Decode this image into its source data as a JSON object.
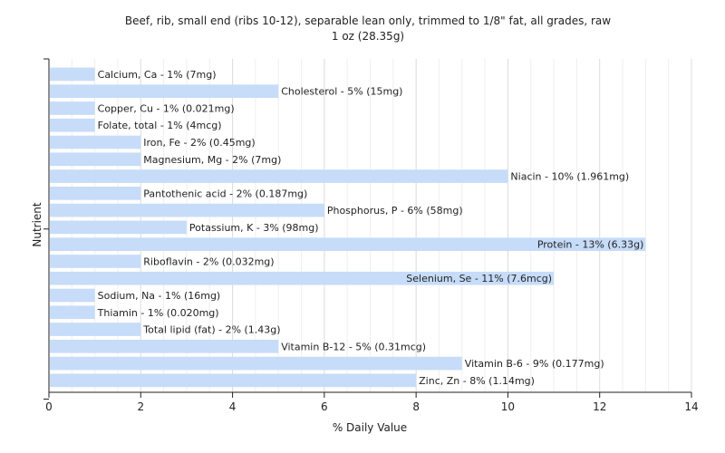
{
  "chart_data": {
    "type": "bar",
    "orientation": "horizontal",
    "title": "Beef, rib, small end (ribs 10-12), separable lean only, trimmed to 1/8\" fat, all grades, raw",
    "subtitle": "1 oz (28.35g)",
    "xlabel": "% Daily Value",
    "ylabel": "Nutrient",
    "xlim": [
      0,
      14
    ],
    "xticks": [
      0,
      2,
      4,
      6,
      8,
      10,
      12,
      14
    ],
    "grid": true,
    "bar_color": "#c6dcf9",
    "categories": [
      "Calcium, Ca",
      "Cholesterol",
      "Copper, Cu",
      "Folate, total",
      "Iron, Fe",
      "Magnesium, Mg",
      "Niacin",
      "Pantothenic acid",
      "Phosphorus, P",
      "Potassium, K",
      "Protein",
      "Riboflavin",
      "Selenium, Se",
      "Sodium, Na",
      "Thiamin",
      "Total lipid (fat)",
      "Vitamin B-12",
      "Vitamin B-6",
      "Zinc, Zn"
    ],
    "values": [
      1,
      5,
      1,
      1,
      2,
      2,
      10,
      2,
      6,
      3,
      13,
      2,
      11,
      1,
      1,
      2,
      5,
      9,
      8
    ],
    "bar_labels": [
      "Calcium, Ca - 1% (7mg)",
      "Cholesterol - 5% (15mg)",
      "Copper, Cu - 1% (0.021mg)",
      "Folate, total - 1% (4mcg)",
      "Iron, Fe - 2% (0.45mg)",
      "Magnesium, Mg - 2% (7mg)",
      "Niacin - 10% (1.961mg)",
      "Pantothenic acid - 2% (0.187mg)",
      "Phosphorus, P - 6% (58mg)",
      "Potassium, K - 3% (98mg)",
      "Protein - 13% (6.33g)",
      "Riboflavin - 2% (0.032mg)",
      "Selenium, Se - 11% (7.6mcg)",
      "Sodium, Na - 1% (16mg)",
      "Thiamin - 1% (0.020mg)",
      "Total lipid (fat) - 2% (1.43g)",
      "Vitamin B-12 - 5% (0.31mcg)",
      "Vitamin B-6 - 9% (0.177mg)",
      "Zinc, Zn - 8% (1.14mg)"
    ]
  }
}
